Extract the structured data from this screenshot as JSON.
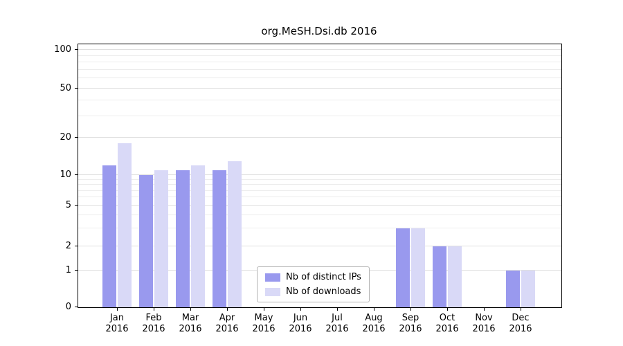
{
  "chart_data": {
    "type": "bar",
    "title": "org.MeSH.Dsi.db 2016",
    "categories": [
      "Jan",
      "Feb",
      "Mar",
      "Apr",
      "May",
      "Jun",
      "Jul",
      "Aug",
      "Sep",
      "Oct",
      "Nov",
      "Dec"
    ],
    "category_year": "2016",
    "series": [
      {
        "name": "Nb of distinct IPs",
        "color": "#9999ee",
        "values": [
          12,
          10,
          11,
          11,
          0,
          0,
          0,
          0,
          3,
          2,
          0,
          1
        ]
      },
      {
        "name": "Nb of downloads",
        "color": "#d9d9f7",
        "values": [
          18,
          11,
          12,
          13,
          0,
          0,
          0,
          0,
          3,
          2,
          0,
          1
        ]
      }
    ],
    "yticks": [
      0,
      1,
      2,
      5,
      10,
      20,
      50,
      100
    ],
    "minor_yticks": [
      3,
      4,
      6,
      7,
      8,
      9,
      30,
      40,
      60,
      70,
      80,
      90
    ],
    "ylim": [
      0,
      100
    ],
    "yscale": "log-with-zero-baseline",
    "grid": true,
    "legend_position": "inside-bottom-center"
  }
}
